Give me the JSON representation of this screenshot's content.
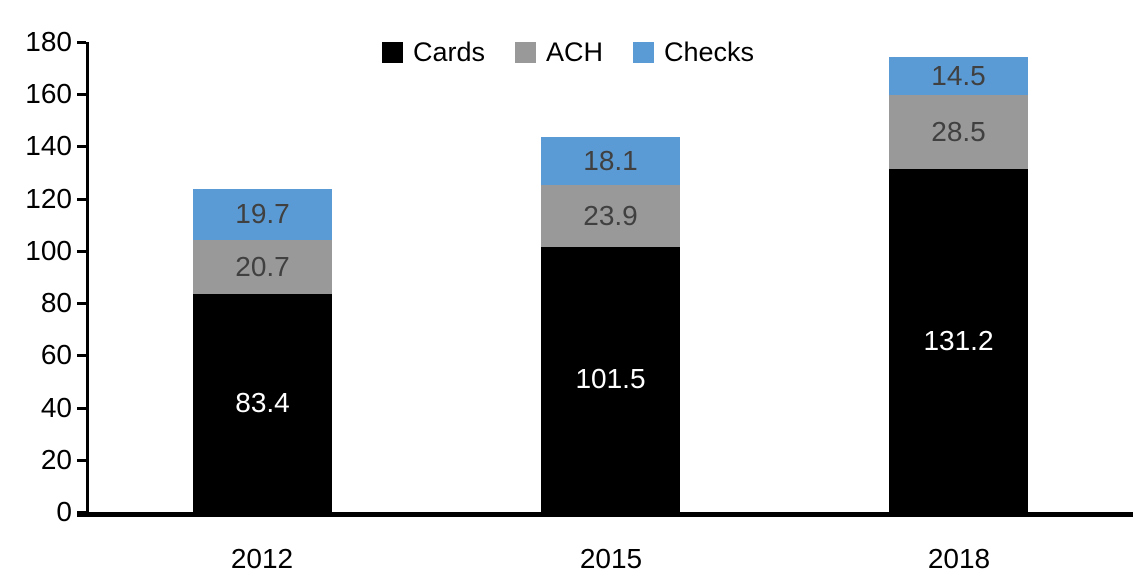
{
  "chart_data": {
    "type": "bar",
    "stacked": true,
    "title": "",
    "xlabel": "",
    "ylabel": "",
    "categories": [
      "2012",
      "2015",
      "2018"
    ],
    "series": [
      {
        "name": "Cards",
        "color": "#000000",
        "label_color": "#ffffff",
        "values": [
          83.4,
          101.5,
          131.2
        ],
        "value_labels": [
          "83.4",
          "101.5",
          "131.2"
        ]
      },
      {
        "name": "ACH",
        "color": "#999999",
        "label_color": "#404040",
        "values": [
          20.7,
          23.9,
          28.5
        ],
        "value_labels": [
          "20.7",
          "23.9",
          "28.5"
        ]
      },
      {
        "name": "Checks",
        "color": "#5B9BD5",
        "label_color": "#404040",
        "values": [
          19.7,
          18.1,
          14.5
        ],
        "value_labels": [
          "19.7",
          "18.1",
          "14.5"
        ]
      }
    ],
    "ylim": [
      0,
      180
    ],
    "ytick_step": 20,
    "y_tick_labels": [
      "0",
      "20",
      "40",
      "60",
      "80",
      "100",
      "120",
      "140",
      "160",
      "180"
    ],
    "legend": {
      "position": "top-center",
      "entries": [
        "Cards",
        "ACH",
        "Checks"
      ]
    },
    "grid": false,
    "axis_color": "#000000"
  }
}
